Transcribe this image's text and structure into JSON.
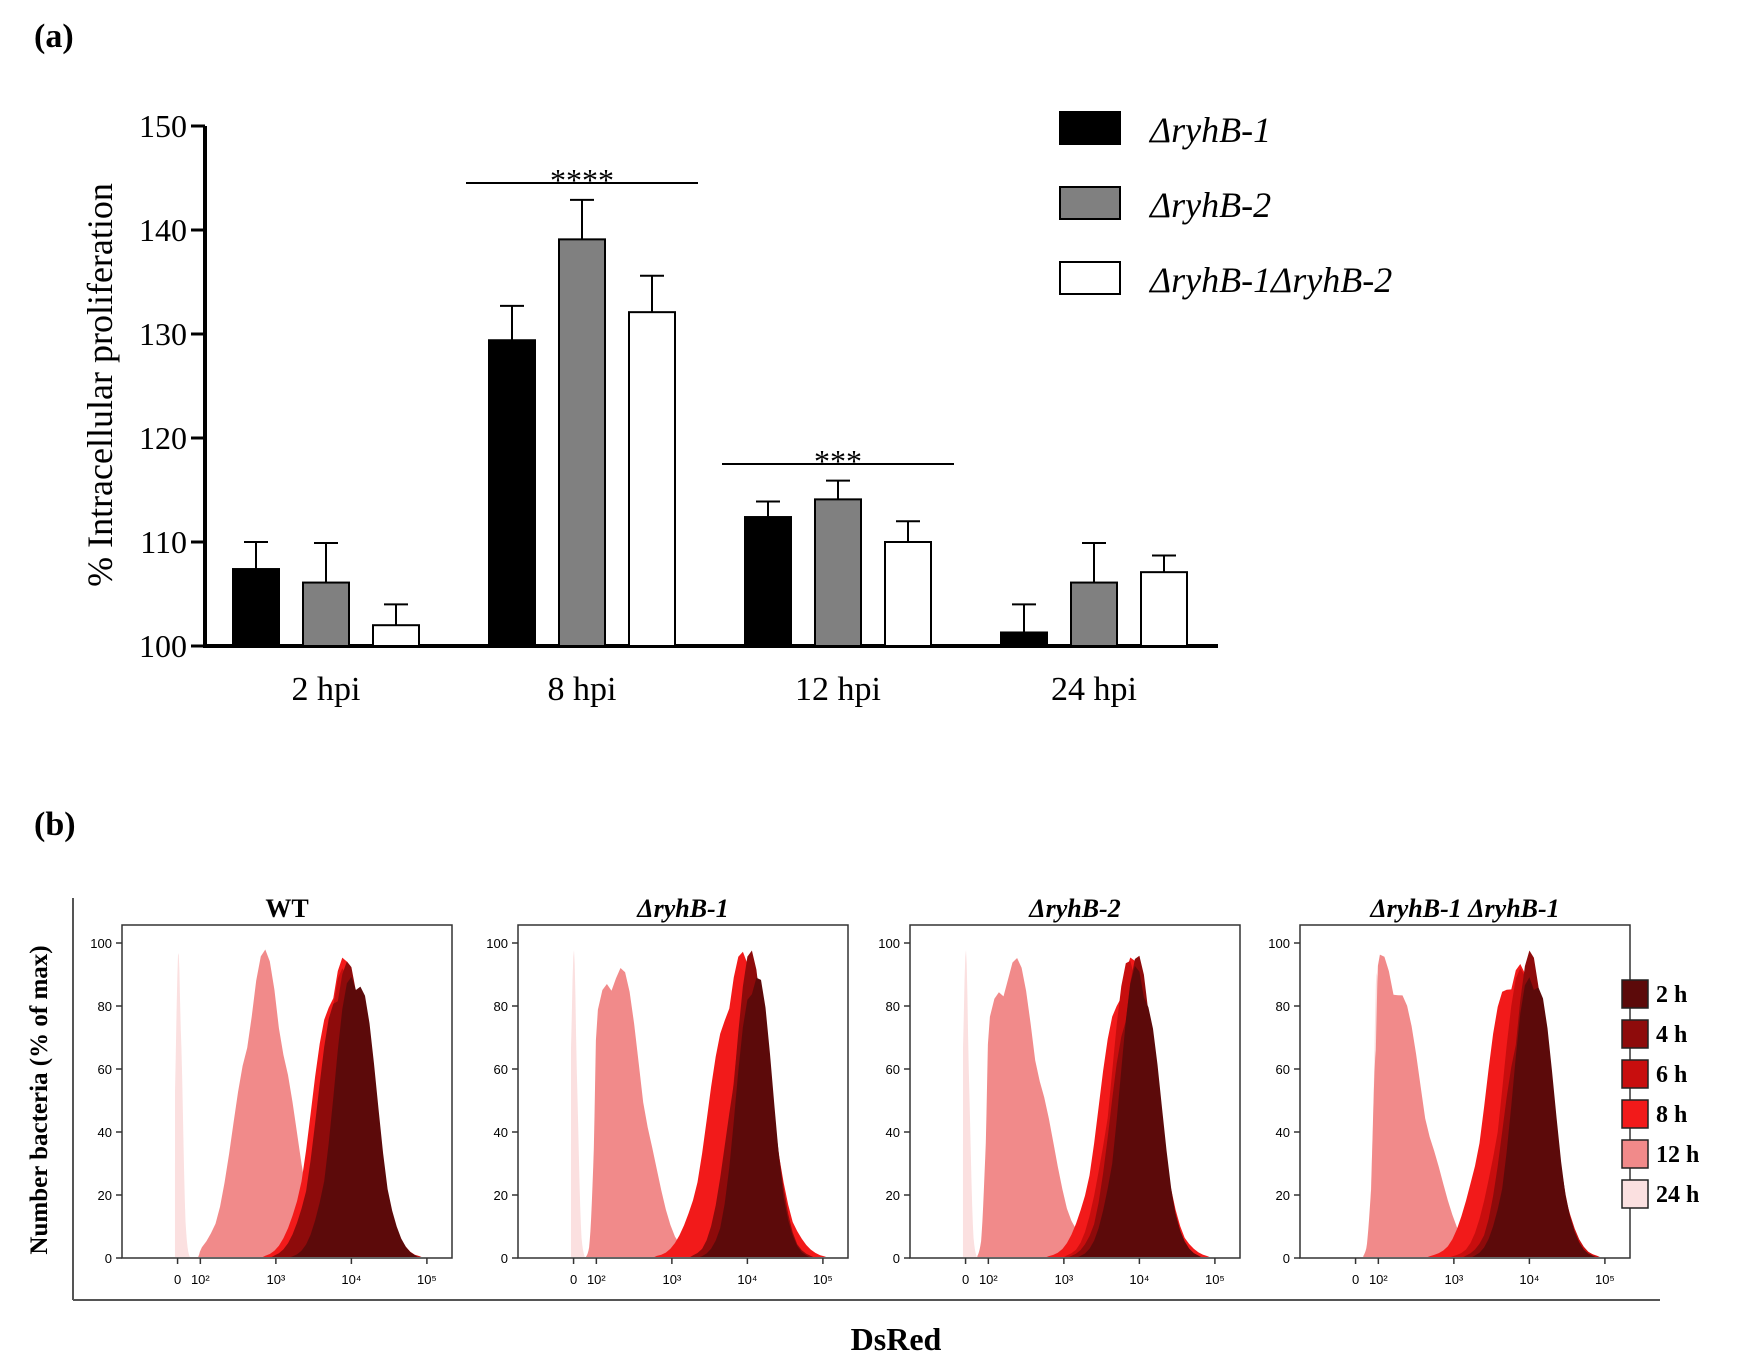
{
  "panel_labels": {
    "a": "(a)",
    "b": "(b)"
  },
  "chart_data": [
    {
      "type": "bar",
      "panel": "(a)",
      "title": "",
      "ylabel": "% Intracellular proliferation",
      "xlabel": "",
      "ylim": [
        100,
        150
      ],
      "yticks": [
        100,
        110,
        120,
        130,
        140,
        150
      ],
      "categories": [
        "2 hpi",
        "8 hpi",
        "12 hpi",
        "24 hpi"
      ],
      "series": [
        {
          "name": "ΔryhB-1",
          "color": "#000000",
          "values": [
            107.4,
            129.4,
            112.4,
            101.3
          ],
          "errors": [
            2.6,
            3.3,
            1.5,
            2.7
          ]
        },
        {
          "name": "ΔryhB-2",
          "color": "#808080",
          "values": [
            106.1,
            139.1,
            114.1,
            106.1
          ],
          "errors": [
            3.8,
            3.8,
            1.8,
            3.8
          ]
        },
        {
          "name": "ΔryhB-1ΔryhB-2",
          "color": "#ffffff",
          "values": [
            102.0,
            132.1,
            110.0,
            107.1
          ],
          "errors": [
            2.0,
            3.5,
            2.0,
            1.6
          ]
        }
      ],
      "legend_position": "top-right",
      "significance": [
        {
          "group": "8 hpi",
          "label": "****"
        },
        {
          "group": "12 hpi",
          "label": "***"
        }
      ]
    },
    {
      "type": "area",
      "panel": "(b)",
      "xlabel": "DsRed",
      "ylabel": "Number bacteria (% of max)",
      "ylim": [
        0,
        100
      ],
      "yticks": [
        "0",
        "20",
        "40",
        "60",
        "80",
        "100"
      ],
      "xticks": [
        "0",
        "10²",
        "10³",
        "10⁴",
        "10⁵"
      ],
      "x_log_positions": [
        0,
        2,
        3,
        4,
        5
      ],
      "legend": [
        {
          "label": "2 h",
          "color": "#5c0a0a"
        },
        {
          "label": "4 h",
          "color": "#8e0b0b"
        },
        {
          "label": "6 h",
          "color": "#c80e0e"
        },
        {
          "label": "8 h",
          "color": "#f21a1a"
        },
        {
          "label": "12 h",
          "color": "#f18a8a"
        },
        {
          "label": "24 h",
          "color": "#fbe0e0"
        }
      ],
      "panels": [
        {
          "title": "WT",
          "italic": false,
          "peaks": [
            [
              4.05,
              3.9,
              3.95,
              3.85,
              2.85,
              0.1
            ],
            [
              0.26,
              0.3,
              0.3,
              0.32,
              0.32,
              0.3
            ]
          ]
        },
        {
          "title": "ΔryhB-1",
          "italic": true,
          "peaks": [
            [
              4.1,
              4.05,
              4.05,
              3.9,
              2.25,
              0.02
            ],
            [
              0.22,
              0.25,
              0.22,
              0.35,
              0.35,
              0.3
            ]
          ]
        },
        {
          "title": "ΔryhB-2",
          "italic": true,
          "peaks": [
            [
              4.0,
              3.95,
              3.9,
              3.85,
              2.3,
              0.02
            ],
            [
              0.25,
              0.27,
              0.28,
              0.33,
              0.4,
              0.3
            ]
          ]
        },
        {
          "title": "ΔryhB-1 ΔryhB-1",
          "italic": true,
          "peaks": [
            [
              4.05,
              4.0,
              3.95,
              3.8,
              2.1,
              1.95
            ],
            [
              0.25,
              0.27,
              0.3,
              0.35,
              0.45,
              0.35
            ]
          ]
        }
      ]
    }
  ]
}
